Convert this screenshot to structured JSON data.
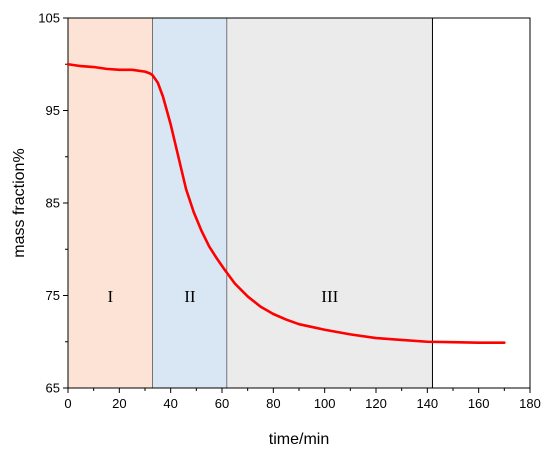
{
  "chart_data": {
    "type": "line",
    "title": "",
    "xlabel": "time/min",
    "ylabel": "mass fraction%",
    "xlim": [
      0,
      180
    ],
    "ylim": [
      65,
      105
    ],
    "xticks": [
      0,
      20,
      40,
      60,
      80,
      100,
      120,
      140,
      160,
      180
    ],
    "yticks": [
      65,
      75,
      85,
      95,
      105
    ],
    "grid": false,
    "legend": "none",
    "series": [
      {
        "color": "#ff0000",
        "x": [
          0,
          5,
          10,
          15,
          20,
          25,
          30,
          32,
          33,
          35,
          37,
          40,
          43,
          46,
          49,
          52,
          55,
          58,
          61,
          65,
          70,
          75,
          80,
          85,
          90,
          95,
          100,
          110,
          120,
          130,
          140,
          150,
          160,
          170
        ],
        "y": [
          100.0,
          99.8,
          99.7,
          99.5,
          99.4,
          99.4,
          99.2,
          99.0,
          98.8,
          98.0,
          96.5,
          93.5,
          90.0,
          86.5,
          84.0,
          82.0,
          80.3,
          79.0,
          77.8,
          76.3,
          74.9,
          73.8,
          73.0,
          72.4,
          71.9,
          71.6,
          71.3,
          70.8,
          70.4,
          70.2,
          70.0,
          69.95,
          69.9,
          69.9
        ]
      }
    ],
    "regions": [
      {
        "label": "I",
        "x0": 0,
        "x1": 33,
        "color": "#fce3d5"
      },
      {
        "label": "II",
        "x0": 33,
        "x1": 62,
        "color": "#d9e7f5"
      },
      {
        "label": "III",
        "x0": 62,
        "x1": 142,
        "color": "#ebebeb"
      }
    ]
  }
}
